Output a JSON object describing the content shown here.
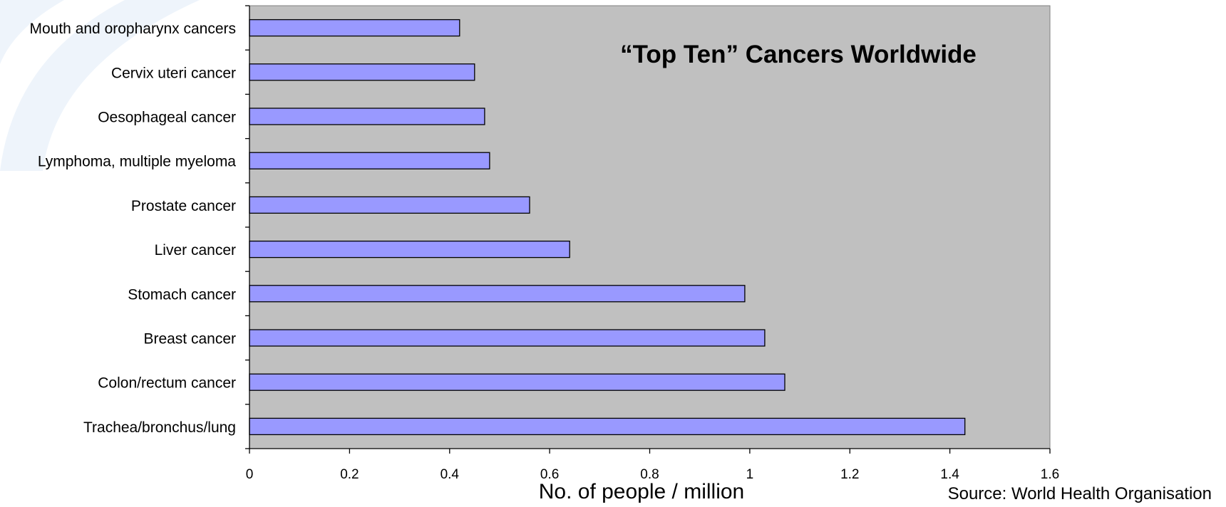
{
  "chart_data": {
    "type": "bar",
    "orientation": "horizontal",
    "title": "“Top Ten” Cancers Worldwide",
    "xlabel": "No. of people / million",
    "ylabel": "",
    "source": "Source: World Health Organisation",
    "categories": [
      "Mouth and oropharynx cancers",
      "Cervix uteri cancer",
      "Oesophageal cancer",
      "Lymphoma, multiple myeloma",
      "Prostate cancer",
      "Liver cancer",
      "Stomach cancer",
      "Breast cancer",
      "Colon/rectum cancer",
      "Trachea/bronchus/lung"
    ],
    "values": [
      0.42,
      0.45,
      0.47,
      0.48,
      0.56,
      0.64,
      0.99,
      1.03,
      1.07,
      1.43
    ],
    "xlim": [
      0,
      1.6
    ],
    "xticks": [
      "0",
      "0.2",
      "0.4",
      "0.6",
      "0.8",
      "1",
      "1.2",
      "1.4",
      "1.6"
    ],
    "grid": false,
    "legend": "none",
    "colors": {
      "bar_fill": "#9999FF",
      "bar_stroke": "#000000",
      "plot_background": "#C0C0C0",
      "decoration": "#EEF4FB"
    }
  }
}
